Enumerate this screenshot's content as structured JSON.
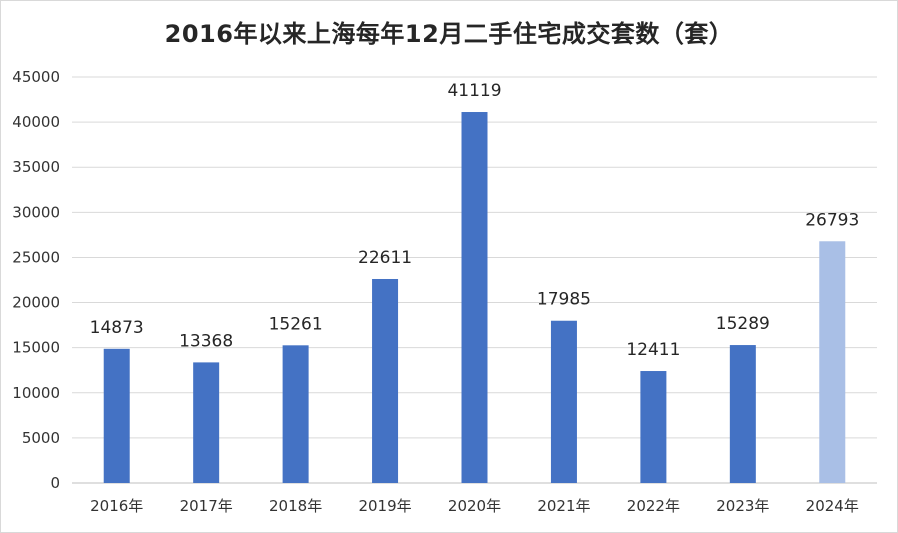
{
  "chart_data": {
    "type": "bar",
    "title": "2016年以来上海每年12月二手住宅成交套数（套）",
    "xlabel": "",
    "ylabel": "",
    "categories": [
      "2016年",
      "2017年",
      "2018年",
      "2019年",
      "2020年",
      "2021年",
      "2022年",
      "2023年",
      "2024年"
    ],
    "values": [
      14873,
      13368,
      15261,
      22611,
      41119,
      17985,
      12411,
      15289,
      26793
    ],
    "data_labels": [
      "14873",
      "13368",
      "15261",
      "22611",
      "41119",
      "17985",
      "12411",
      "15289",
      "26793"
    ],
    "ylim": [
      0,
      45000
    ],
    "yticks": [
      "0",
      "5000",
      "10000",
      "15000",
      "20000",
      "25000",
      "30000",
      "35000",
      "40000",
      "45000"
    ],
    "grid": true,
    "legend": "none",
    "colors": {
      "bar": "#4472c4",
      "bar_highlight": "#a9bfe6",
      "gridline": "#d9d9d9",
      "text": "#333333"
    },
    "highlight_index": 8
  }
}
